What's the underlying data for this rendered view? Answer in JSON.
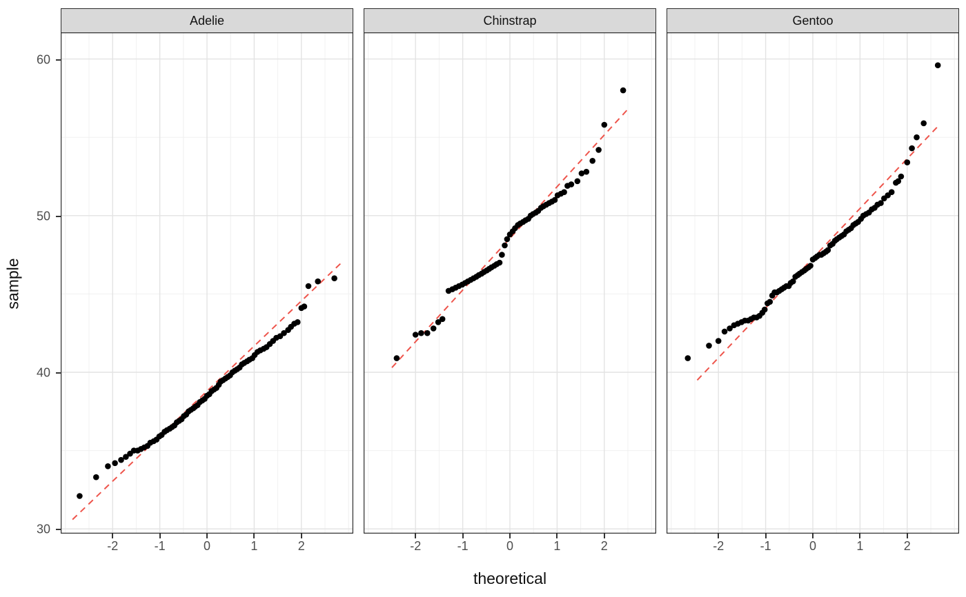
{
  "chart_data": {
    "type": "scatter",
    "subtype": "qq-plot-faceted",
    "title": "",
    "xlabel": "theoretical",
    "ylabel": "sample",
    "xlim": [
      -3.1,
      3.1
    ],
    "ylim": [
      29.7,
      61.7
    ],
    "x_ticks": [
      -2,
      -1,
      0,
      1,
      2
    ],
    "y_ticks": [
      30,
      40,
      50,
      60
    ],
    "x_minor_ticks": [
      -3,
      -2.5,
      -1.5,
      -0.5,
      0.5,
      1.5,
      2.5,
      3
    ],
    "y_minor_ticks": [
      35,
      45,
      55
    ],
    "grid": true,
    "legend": "none",
    "point_color": "#000000",
    "ref_line_color": "#ee544b",
    "grid_major_color": "#e3e3e3",
    "grid_minor_color": "#f0f0f0",
    "panel_border_color": "#2b2b2b",
    "strip_bg": "#d9d9d9",
    "facets": [
      {
        "label": "Adelie",
        "ref_line": {
          "x1": -2.85,
          "y1": 30.6,
          "x2": 2.85,
          "y2": 47.0
        },
        "points": [
          [
            -2.7,
            32.1
          ],
          [
            -2.35,
            33.3
          ],
          [
            -2.1,
            34.0
          ],
          [
            -1.95,
            34.2
          ],
          [
            -1.82,
            34.4
          ],
          [
            -1.72,
            34.6
          ],
          [
            -1.63,
            34.8
          ],
          [
            -1.55,
            35.0
          ],
          [
            -1.47,
            35.0
          ],
          [
            -1.4,
            35.1
          ],
          [
            -1.33,
            35.2
          ],
          [
            -1.26,
            35.3
          ],
          [
            -1.2,
            35.5
          ],
          [
            -1.13,
            35.6
          ],
          [
            -1.07,
            35.7
          ],
          [
            -1.01,
            35.9
          ],
          [
            -0.96,
            36.0
          ],
          [
            -0.9,
            36.2
          ],
          [
            -0.85,
            36.3
          ],
          [
            -0.79,
            36.4
          ],
          [
            -0.74,
            36.5
          ],
          [
            -0.69,
            36.6
          ],
          [
            -0.64,
            36.8
          ],
          [
            -0.59,
            36.9
          ],
          [
            -0.54,
            37.0
          ],
          [
            -0.49,
            37.2
          ],
          [
            -0.44,
            37.3
          ],
          [
            -0.39,
            37.5
          ],
          [
            -0.34,
            37.6
          ],
          [
            -0.29,
            37.7
          ],
          [
            -0.25,
            37.8
          ],
          [
            -0.2,
            37.9
          ],
          [
            -0.15,
            38.1
          ],
          [
            -0.1,
            38.2
          ],
          [
            -0.05,
            38.3
          ],
          [
            0,
            38.5
          ],
          [
            0.05,
            38.6
          ],
          [
            0.1,
            38.8
          ],
          [
            0.15,
            38.9
          ],
          [
            0.2,
            39.0
          ],
          [
            0.25,
            39.2
          ],
          [
            0.29,
            39.4
          ],
          [
            0.34,
            39.5
          ],
          [
            0.39,
            39.6
          ],
          [
            0.44,
            39.7
          ],
          [
            0.49,
            39.8
          ],
          [
            0.54,
            40.0
          ],
          [
            0.59,
            40.1
          ],
          [
            0.64,
            40.2
          ],
          [
            0.69,
            40.3
          ],
          [
            0.74,
            40.5
          ],
          [
            0.79,
            40.6
          ],
          [
            0.85,
            40.7
          ],
          [
            0.9,
            40.8
          ],
          [
            0.96,
            40.9
          ],
          [
            1.01,
            41.1
          ],
          [
            1.07,
            41.3
          ],
          [
            1.13,
            41.4
          ],
          [
            1.2,
            41.5
          ],
          [
            1.26,
            41.6
          ],
          [
            1.33,
            41.8
          ],
          [
            1.4,
            42.0
          ],
          [
            1.47,
            42.2
          ],
          [
            1.55,
            42.3
          ],
          [
            1.63,
            42.5
          ],
          [
            1.72,
            42.7
          ],
          [
            1.78,
            42.9
          ],
          [
            1.85,
            43.1
          ],
          [
            1.92,
            43.2
          ],
          [
            2.0,
            44.1
          ],
          [
            2.06,
            44.2
          ],
          [
            2.15,
            45.5
          ],
          [
            2.35,
            45.8
          ],
          [
            2.7,
            46.0
          ]
        ]
      },
      {
        "label": "Chinstrap",
        "ref_line": {
          "x1": -2.5,
          "y1": 40.3,
          "x2": 2.5,
          "y2": 56.8
        },
        "points": [
          [
            -2.4,
            40.9
          ],
          [
            -2.0,
            42.4
          ],
          [
            -1.88,
            42.5
          ],
          [
            -1.75,
            42.5
          ],
          [
            -1.62,
            42.8
          ],
          [
            -1.52,
            43.2
          ],
          [
            -1.43,
            43.4
          ],
          [
            -1.3,
            45.2
          ],
          [
            -1.22,
            45.3
          ],
          [
            -1.15,
            45.4
          ],
          [
            -1.08,
            45.5
          ],
          [
            -1.01,
            45.6
          ],
          [
            -0.95,
            45.7
          ],
          [
            -0.89,
            45.8
          ],
          [
            -0.83,
            45.9
          ],
          [
            -0.77,
            46.0
          ],
          [
            -0.71,
            46.1
          ],
          [
            -0.66,
            46.2
          ],
          [
            -0.6,
            46.3
          ],
          [
            -0.55,
            46.4
          ],
          [
            -0.49,
            46.5
          ],
          [
            -0.44,
            46.6
          ],
          [
            -0.39,
            46.7
          ],
          [
            -0.33,
            46.8
          ],
          [
            -0.28,
            46.9
          ],
          [
            -0.22,
            47.0
          ],
          [
            -0.17,
            47.5
          ],
          [
            -0.11,
            48.1
          ],
          [
            -0.06,
            48.5
          ],
          [
            0,
            48.8
          ],
          [
            0.06,
            49.0
          ],
          [
            0.11,
            49.2
          ],
          [
            0.17,
            49.4
          ],
          [
            0.22,
            49.5
          ],
          [
            0.28,
            49.6
          ],
          [
            0.33,
            49.7
          ],
          [
            0.39,
            49.8
          ],
          [
            0.44,
            50.0
          ],
          [
            0.49,
            50.1
          ],
          [
            0.55,
            50.2
          ],
          [
            0.6,
            50.3
          ],
          [
            0.66,
            50.5
          ],
          [
            0.71,
            50.6
          ],
          [
            0.77,
            50.7
          ],
          [
            0.83,
            50.8
          ],
          [
            0.89,
            50.9
          ],
          [
            0.95,
            51.0
          ],
          [
            1.01,
            51.3
          ],
          [
            1.08,
            51.4
          ],
          [
            1.15,
            51.5
          ],
          [
            1.22,
            51.9
          ],
          [
            1.3,
            52.0
          ],
          [
            1.43,
            52.2
          ],
          [
            1.52,
            52.7
          ],
          [
            1.62,
            52.8
          ],
          [
            1.75,
            53.5
          ],
          [
            1.88,
            54.2
          ],
          [
            2.0,
            55.8
          ],
          [
            2.4,
            58.0
          ]
        ]
      },
      {
        "label": "Gentoo",
        "ref_line": {
          "x1": -2.45,
          "y1": 39.5,
          "x2": 2.65,
          "y2": 55.7
        },
        "points": [
          [
            -2.65,
            40.9
          ],
          [
            -2.2,
            41.7
          ],
          [
            -2.0,
            42.0
          ],
          [
            -1.87,
            42.6
          ],
          [
            -1.76,
            42.8
          ],
          [
            -1.67,
            43.0
          ],
          [
            -1.59,
            43.1
          ],
          [
            -1.51,
            43.2
          ],
          [
            -1.44,
            43.3
          ],
          [
            -1.37,
            43.3
          ],
          [
            -1.31,
            43.4
          ],
          [
            -1.25,
            43.5
          ],
          [
            -1.19,
            43.5
          ],
          [
            -1.13,
            43.6
          ],
          [
            -1.07,
            43.8
          ],
          [
            -1.02,
            44.0
          ],
          [
            -0.96,
            44.4
          ],
          [
            -0.91,
            44.5
          ],
          [
            -0.86,
            44.9
          ],
          [
            -0.81,
            45.1
          ],
          [
            -0.76,
            45.1
          ],
          [
            -0.71,
            45.2
          ],
          [
            -0.66,
            45.3
          ],
          [
            -0.61,
            45.4
          ],
          [
            -0.56,
            45.5
          ],
          [
            -0.51,
            45.5
          ],
          [
            -0.47,
            45.7
          ],
          [
            -0.42,
            45.8
          ],
          [
            -0.37,
            46.1
          ],
          [
            -0.32,
            46.2
          ],
          [
            -0.28,
            46.3
          ],
          [
            -0.23,
            46.4
          ],
          [
            -0.18,
            46.5
          ],
          [
            -0.14,
            46.6
          ],
          [
            -0.09,
            46.7
          ],
          [
            -0.05,
            46.8
          ],
          [
            0,
            47.2
          ],
          [
            0.05,
            47.3
          ],
          [
            0.09,
            47.4
          ],
          [
            0.14,
            47.5
          ],
          [
            0.18,
            47.5
          ],
          [
            0.23,
            47.6
          ],
          [
            0.28,
            47.7
          ],
          [
            0.32,
            47.8
          ],
          [
            0.37,
            48.1
          ],
          [
            0.42,
            48.2
          ],
          [
            0.47,
            48.4
          ],
          [
            0.51,
            48.5
          ],
          [
            0.56,
            48.6
          ],
          [
            0.61,
            48.7
          ],
          [
            0.66,
            48.8
          ],
          [
            0.71,
            49.0
          ],
          [
            0.76,
            49.1
          ],
          [
            0.81,
            49.2
          ],
          [
            0.86,
            49.4
          ],
          [
            0.91,
            49.5
          ],
          [
            0.96,
            49.6
          ],
          [
            1.02,
            49.8
          ],
          [
            1.07,
            50.0
          ],
          [
            1.13,
            50.1
          ],
          [
            1.19,
            50.2
          ],
          [
            1.25,
            50.4
          ],
          [
            1.31,
            50.5
          ],
          [
            1.37,
            50.7
          ],
          [
            1.44,
            50.8
          ],
          [
            1.51,
            51.1
          ],
          [
            1.59,
            51.3
          ],
          [
            1.67,
            51.5
          ],
          [
            1.76,
            52.1
          ],
          [
            1.81,
            52.2
          ],
          [
            1.87,
            52.5
          ],
          [
            2.0,
            53.4
          ],
          [
            2.1,
            54.3
          ],
          [
            2.2,
            55.0
          ],
          [
            2.35,
            55.9
          ],
          [
            2.65,
            59.6
          ]
        ]
      }
    ]
  }
}
